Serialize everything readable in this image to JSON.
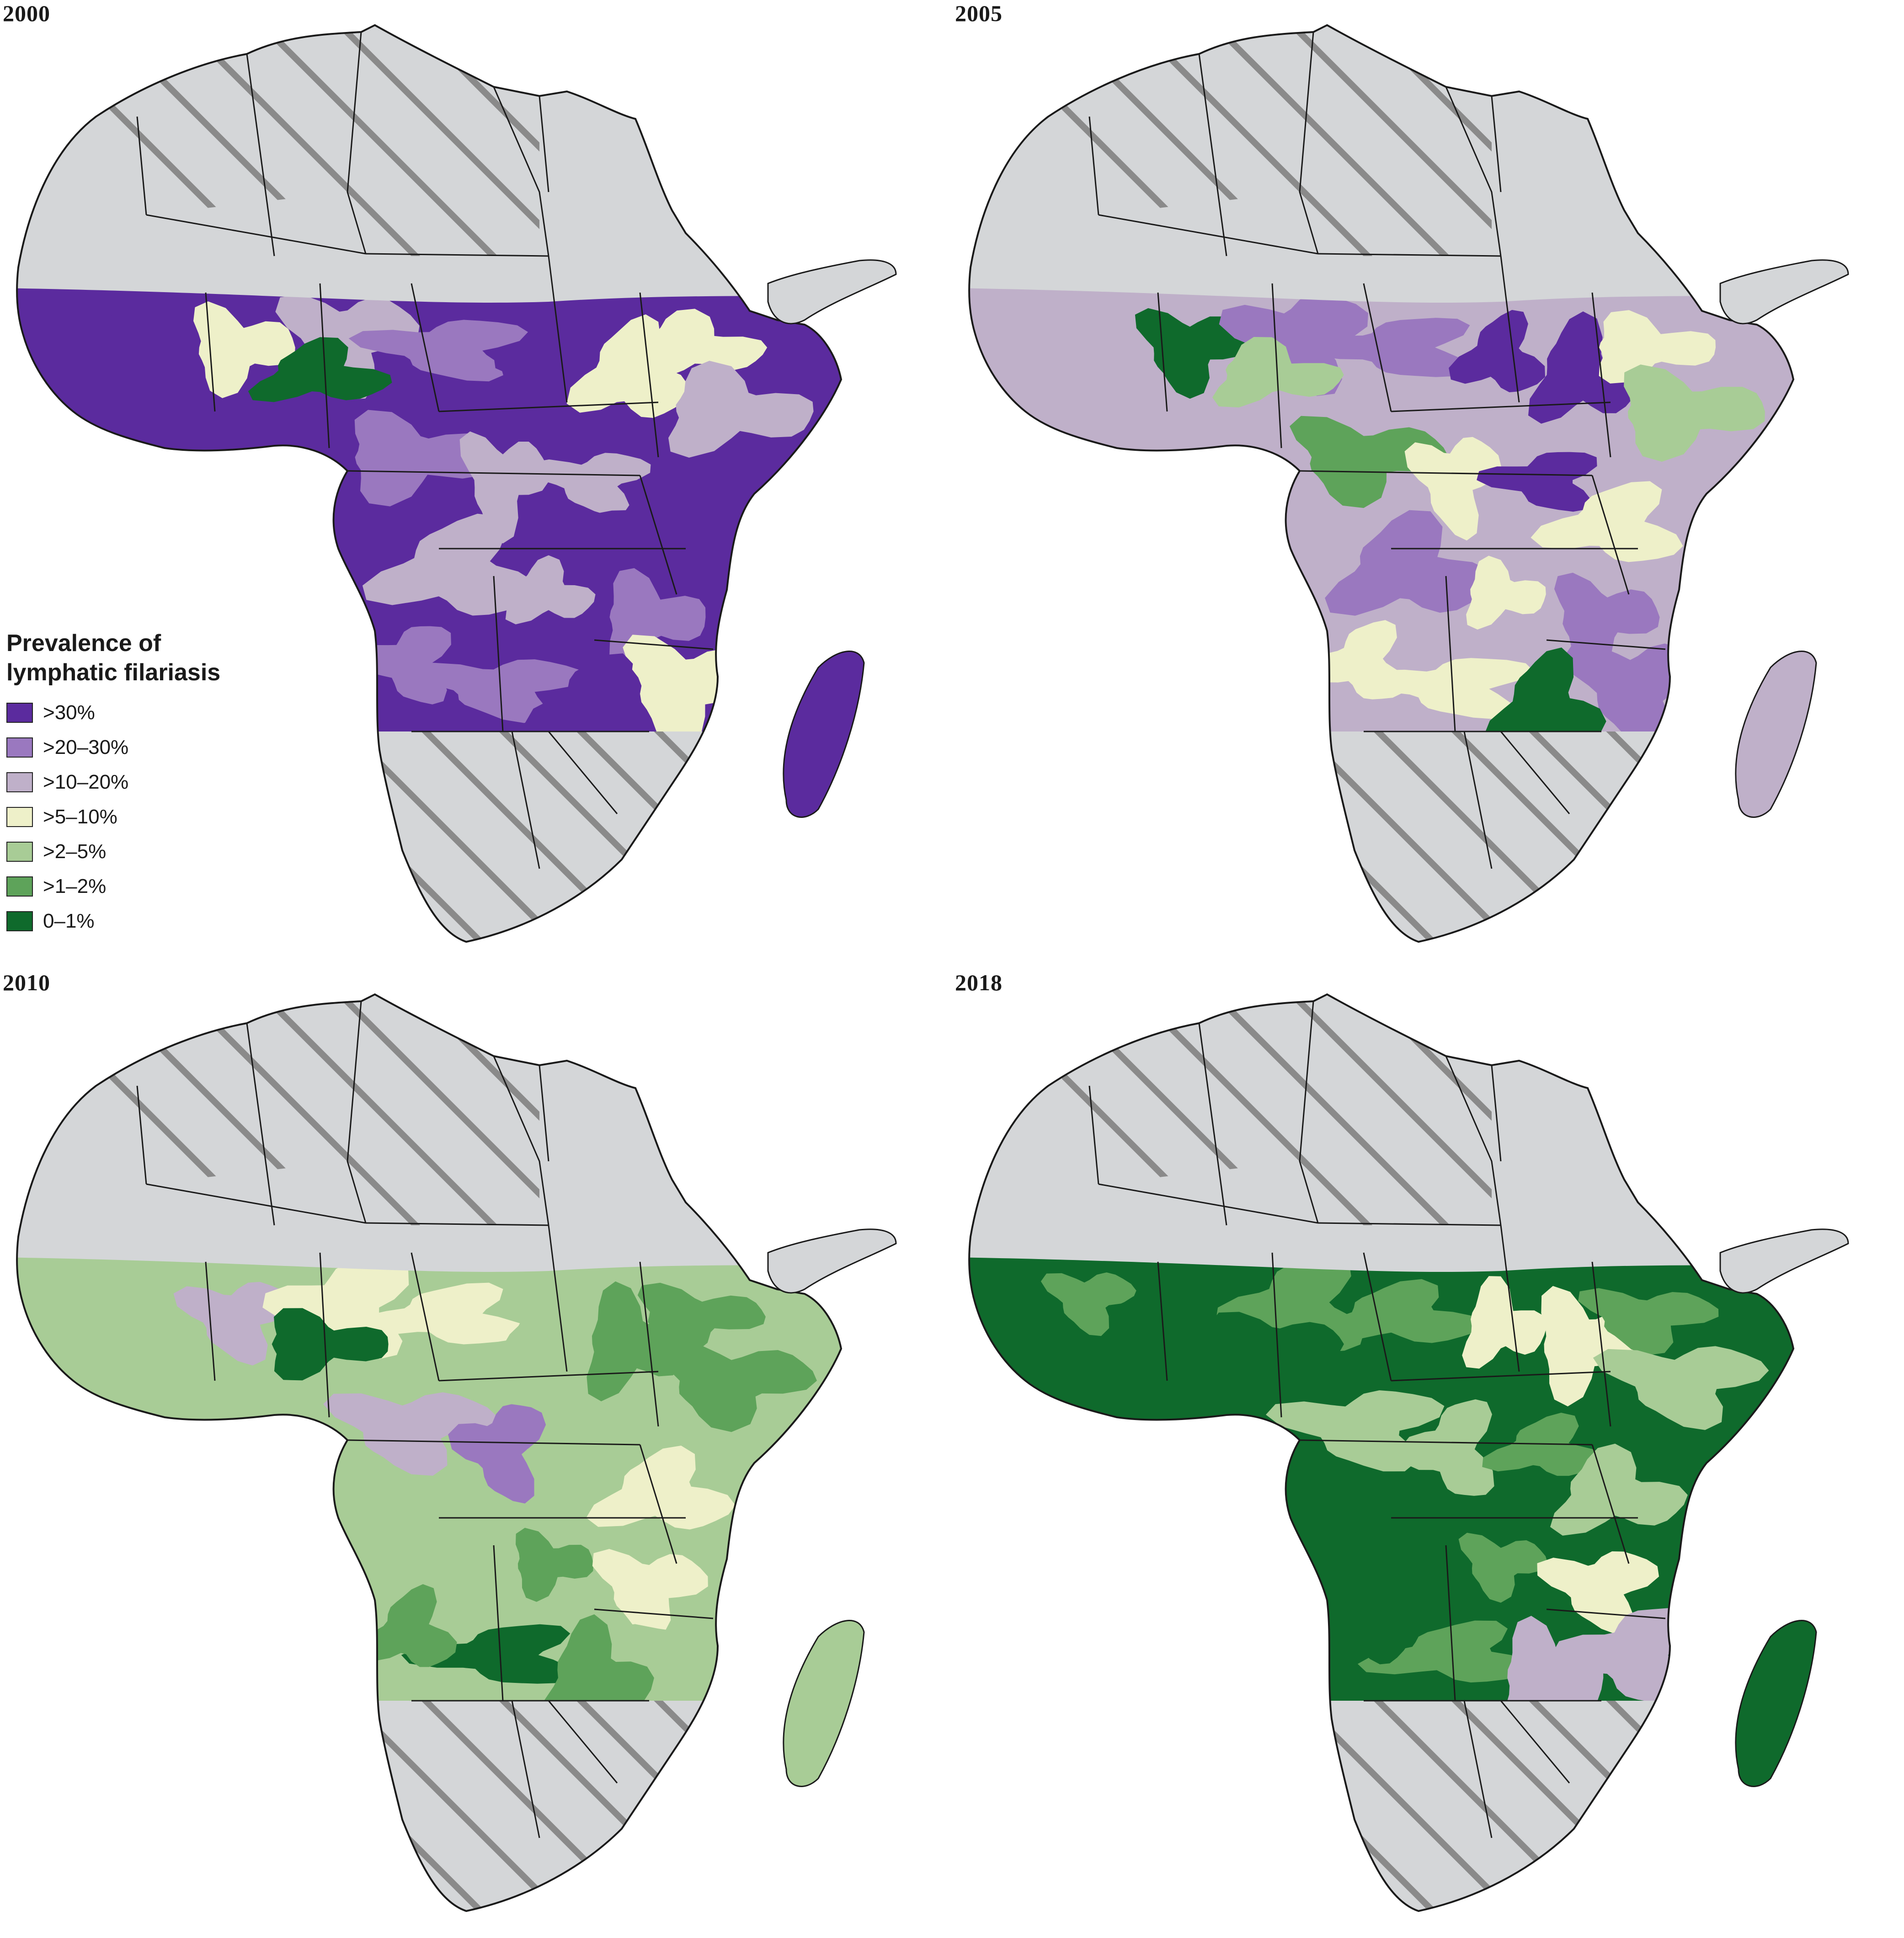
{
  "panels": [
    {
      "year": "2000",
      "mix": {
        "c1": 0.3,
        "c2": 0.22,
        "c3": 0.22,
        "c4": 0.12,
        "c5": 0.08,
        "c6": 0.04,
        "c7": 0.02
      }
    },
    {
      "year": "2005",
      "mix": {
        "c1": 0.1,
        "c2": 0.14,
        "c3": 0.24,
        "c4": 0.2,
        "c5": 0.16,
        "c6": 0.1,
        "c7": 0.06
      }
    },
    {
      "year": "2010",
      "mix": {
        "c1": 0.02,
        "c2": 0.04,
        "c3": 0.08,
        "c4": 0.22,
        "c5": 0.26,
        "c6": 0.22,
        "c7": 0.16
      }
    },
    {
      "year": "2018",
      "mix": {
        "c1": 0.0,
        "c2": 0.01,
        "c3": 0.02,
        "c4": 0.06,
        "c5": 0.2,
        "c6": 0.3,
        "c7": 0.41
      }
    }
  ],
  "legend": {
    "title_line1": "Prevalence of",
    "title_line2": "lymphatic filariasis",
    "items": [
      {
        "label": ">30%",
        "color": "#5b2b9e"
      },
      {
        "label": ">20–30%",
        "color": "#9a78bf"
      },
      {
        "label": ">10–20%",
        "color": "#bfb0c9"
      },
      {
        "label": ">5–10%",
        "color": "#eef0c9"
      },
      {
        "label": ">2–5%",
        "color": "#a8cc96"
      },
      {
        "label": ">1–2%",
        "color": "#5ea35a"
      },
      {
        "label": "0–1%",
        "color": "#0f6a2c"
      }
    ]
  },
  "colors": {
    "no_data": "#d4d6d8",
    "hatch": "#8a8a8a",
    "border": "#1a1a1a"
  }
}
